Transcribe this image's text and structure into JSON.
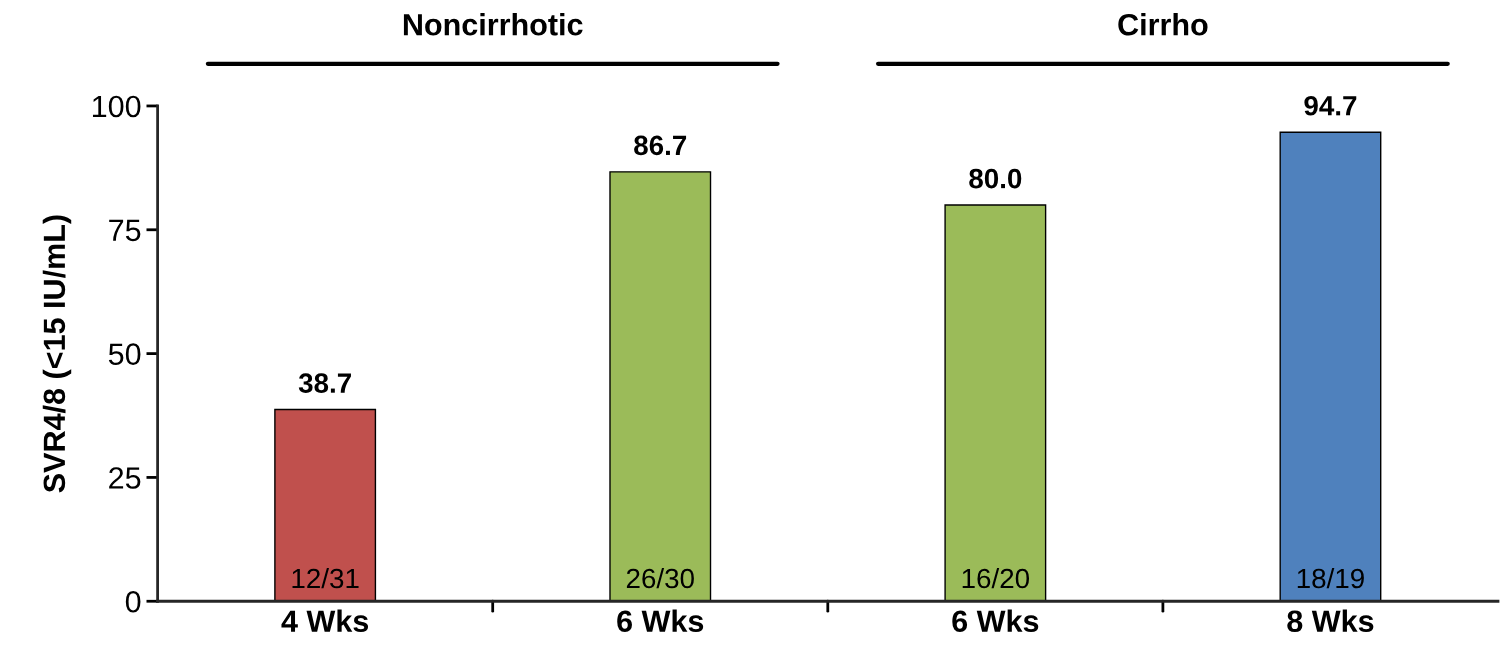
{
  "chart_data": {
    "type": "bar",
    "categories": [
      "4 Wks",
      "6 Wks",
      "6 Wks",
      "8 Wks"
    ],
    "values": [
      38.7,
      86.7,
      80.0,
      94.7
    ],
    "colors": [
      "#c0504d",
      "#9bbb59",
      "#9bbb59",
      "#4f81bd"
    ],
    "value_labels": [
      "38.7",
      "86.7",
      "80.0",
      "94.7"
    ],
    "ylabel": "SVR4/8 (<15 IU/mL)",
    "ylim": [
      0,
      100
    ],
    "yticks": [
      0,
      25,
      50,
      75,
      100
    ],
    "grid": false,
    "legend": false,
    "annotations": [
      "Noncirrhotic",
      "Cirrho",
      "12/31",
      "26/30",
      "16/20",
      "18/19"
    ]
  }
}
